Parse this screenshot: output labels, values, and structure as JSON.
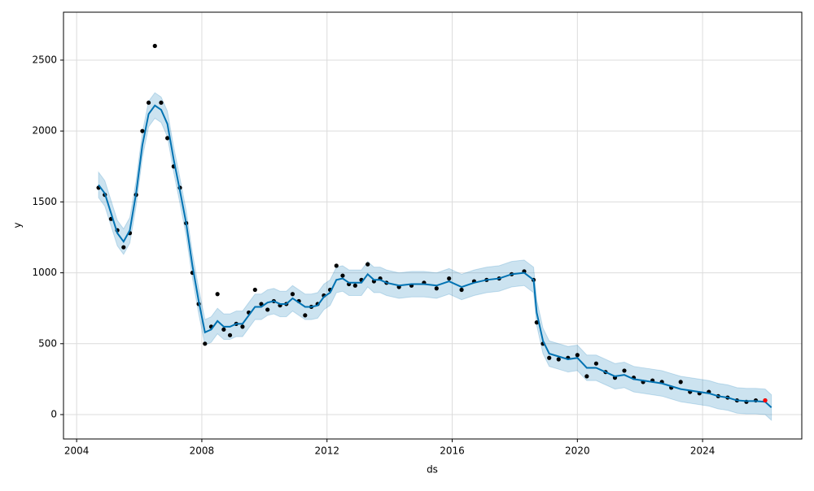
{
  "chart_data": {
    "type": "line",
    "xlabel": "ds",
    "ylabel": "y",
    "xlim": [
      2003.58,
      2027.17
    ],
    "ylim": [
      -172,
      2838
    ],
    "xticks": [
      2004,
      2008,
      2012,
      2016,
      2020,
      2024
    ],
    "yticks": [
      0,
      500,
      1000,
      1500,
      2000,
      2500
    ],
    "grid": true,
    "x": [
      2004.7,
      2004.9,
      2005.1,
      2005.3,
      2005.5,
      2005.7,
      2005.9,
      2006.1,
      2006.3,
      2006.5,
      2006.7,
      2006.9,
      2007.1,
      2007.3,
      2007.5,
      2007.7,
      2007.9,
      2008.1,
      2008.3,
      2008.5,
      2008.7,
      2008.9,
      2009.1,
      2009.3,
      2009.5,
      2009.7,
      2009.9,
      2010.1,
      2010.3,
      2010.5,
      2010.7,
      2010.9,
      2011.1,
      2011.3,
      2011.5,
      2011.7,
      2011.9,
      2012.1,
      2012.3,
      2012.5,
      2012.7,
      2012.9,
      2013.1,
      2013.3,
      2013.5,
      2013.7,
      2013.9,
      2014.3,
      2014.7,
      2015.1,
      2015.5,
      2015.9,
      2016.3,
      2016.7,
      2017.1,
      2017.5,
      2017.9,
      2018.3,
      2018.6,
      2018.7,
      2018.9,
      2019.1,
      2019.4,
      2019.7,
      2020.0,
      2020.3,
      2020.6,
      2020.9,
      2021.2,
      2021.5,
      2021.8,
      2022.1,
      2022.4,
      2022.7,
      2023.0,
      2023.3,
      2023.6,
      2023.9,
      2024.2,
      2024.5,
      2024.8,
      2025.1,
      2025.4,
      2025.7,
      2026.0,
      2026.2
    ],
    "series": [
      {
        "style": "band",
        "color": "#0072b2",
        "lower": [
          1530,
          1470,
          1330,
          1190,
          1130,
          1210,
          1470,
          1810,
          2030,
          2090,
          2060,
          1960,
          1710,
          1490,
          1260,
          960,
          710,
          490,
          510,
          570,
          530,
          530,
          550,
          550,
          610,
          670,
          670,
          700,
          710,
          690,
          690,
          730,
          700,
          670,
          670,
          680,
          740,
          770,
          860,
          870,
          840,
          840,
          840,
          900,
          860,
          860,
          840,
          820,
          830,
          830,
          820,
          850,
          810,
          840,
          860,
          870,
          900,
          910,
          860,
          630,
          430,
          340,
          320,
          300,
          310,
          240,
          240,
          210,
          180,
          190,
          160,
          150,
          140,
          130,
          110,
          90,
          80,
          70,
          60,
          40,
          30,
          10,
          5,
          5,
          0,
          -40
        ],
        "upper": [
          1710,
          1650,
          1510,
          1370,
          1310,
          1390,
          1650,
          1990,
          2210,
          2270,
          2240,
          2140,
          1890,
          1670,
          1440,
          1140,
          890,
          670,
          690,
          750,
          710,
          710,
          730,
          730,
          790,
          850,
          850,
          880,
          890,
          870,
          870,
          910,
          880,
          850,
          850,
          860,
          920,
          950,
          1040,
          1050,
          1020,
          1020,
          1020,
          1080,
          1040,
          1040,
          1020,
          1000,
          1010,
          1010,
          1000,
          1030,
          990,
          1020,
          1040,
          1050,
          1080,
          1090,
          1040,
          810,
          610,
          520,
          500,
          480,
          490,
          420,
          420,
          390,
          360,
          370,
          340,
          330,
          320,
          310,
          290,
          270,
          260,
          250,
          240,
          220,
          210,
          190,
          185,
          185,
          180,
          140
        ]
      },
      {
        "style": "points",
        "color": "#000000",
        "values": [
          1600,
          1550,
          1380,
          1300,
          1180,
          1280,
          1550,
          2000,
          2200,
          2600,
          2200,
          1950,
          1750,
          1600,
          1350,
          1000,
          780,
          500,
          620,
          850,
          600,
          560,
          640,
          620,
          720,
          880,
          780,
          740,
          800,
          770,
          780,
          850,
          800,
          700,
          760,
          780,
          840,
          880,
          1050,
          980,
          920,
          910,
          950,
          1060,
          940,
          960,
          930,
          900,
          910,
          930,
          890,
          960,
          880,
          940,
          950,
          960,
          990,
          1010,
          950,
          650,
          500,
          400,
          390,
          400,
          420,
          270,
          360,
          300,
          260,
          310,
          260,
          230,
          240,
          230,
          190,
          230,
          160,
          150,
          160,
          130,
          120,
          100,
          90,
          100,
          100,
          null
        ]
      },
      {
        "style": "line",
        "color": "#0072b2",
        "values": [
          1620,
          1560,
          1420,
          1280,
          1220,
          1300,
          1560,
          1900,
          2120,
          2180,
          2150,
          2050,
          1800,
          1580,
          1350,
          1050,
          800,
          580,
          600,
          660,
          620,
          620,
          640,
          640,
          700,
          760,
          760,
          790,
          800,
          780,
          780,
          820,
          790,
          760,
          760,
          770,
          830,
          860,
          950,
          960,
          930,
          930,
          930,
          990,
          950,
          950,
          930,
          910,
          920,
          920,
          910,
          940,
          900,
          930,
          950,
          960,
          990,
          1000,
          950,
          720,
          520,
          430,
          410,
          390,
          400,
          330,
          330,
          300,
          270,
          280,
          250,
          240,
          230,
          220,
          200,
          180,
          170,
          160,
          150,
          130,
          120,
          100,
          95,
          95,
          90,
          50
        ]
      },
      {
        "style": "points",
        "color": "#ff0000",
        "x": [
          2026.0
        ],
        "values": [
          100
        ]
      }
    ]
  }
}
